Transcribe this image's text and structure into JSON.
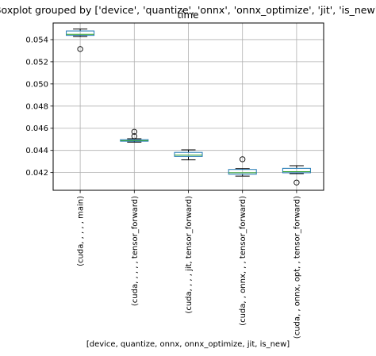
{
  "chart_data": {
    "type": "boxplot",
    "suptitle": "Boxplot grouped by ['device', 'quantize', 'onnx', 'onnx_optimize', 'jit', 'is_new']",
    "title": "time",
    "xlabel": "[device, quantize, onnx, onnx_optimize, jit, is_new]",
    "ylabel": "",
    "ylim": [
      0.0404,
      0.0555
    ],
    "yticks": [
      0.042,
      0.044,
      0.046,
      0.048,
      0.05,
      0.052,
      0.054
    ],
    "ytick_labels": [
      "0.042",
      "0.044",
      "0.046",
      "0.048",
      "0.050",
      "0.052",
      "0.054"
    ],
    "grid": true,
    "colors": {
      "box": "#1f77b4",
      "median": "#2ca02c",
      "whisker": "#000000",
      "grid": "#b0b0b0"
    },
    "categories": [
      "(cuda, , , , , main)",
      "(cuda, , , , , tensor_forward)",
      "(cuda, , , , jit, tensor_forward)",
      "(cuda, , onnx, , , tensor_forward)",
      "(cuda, , onnx, opt, , tensor_forward)"
    ],
    "boxes": [
      {
        "whislo": 0.05428,
        "q1": 0.05438,
        "med": 0.05448,
        "q3": 0.05478,
        "whishi": 0.05495,
        "fliers": [
          0.05315
        ]
      },
      {
        "whislo": 0.04475,
        "q1": 0.04483,
        "med": 0.04488,
        "q3": 0.04497,
        "whishi": 0.04505,
        "fliers": [
          0.04528,
          0.04568
        ]
      },
      {
        "whislo": 0.04315,
        "q1": 0.04345,
        "med": 0.04358,
        "q3": 0.04382,
        "whishi": 0.04405,
        "fliers": []
      },
      {
        "whislo": 0.04168,
        "q1": 0.04185,
        "med": 0.04198,
        "q3": 0.04228,
        "whishi": 0.04235,
        "fliers": [
          0.0432
        ]
      },
      {
        "whislo": 0.0419,
        "q1": 0.04198,
        "med": 0.04208,
        "q3": 0.04238,
        "whishi": 0.04262,
        "fliers": [
          0.0411
        ]
      }
    ]
  }
}
